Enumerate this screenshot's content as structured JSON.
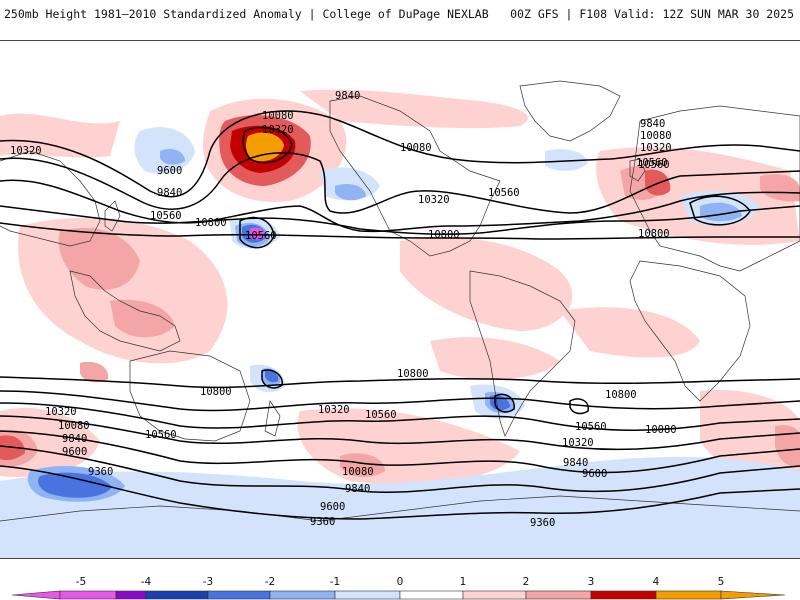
{
  "header": {
    "title": "250mb Height 1981–2010 Standardized Anomaly | College of DuPage NEXLAB",
    "run_info": "00Z GFS | F108 Valid: 12Z SUN MAR 30 2025"
  },
  "contour_labels": {
    "c1": "9840",
    "c2": "10080",
    "c3": "10320",
    "c4": "10560",
    "c5": "9600",
    "c6": "9840",
    "c7": "10560",
    "c8": "10800",
    "c9": "10320",
    "c10": "10560",
    "c11": "10080",
    "c12": "10320",
    "c13": "10560",
    "c14": "9840",
    "c15": "10080",
    "c16": "10320",
    "c17": "10560",
    "c18": "10800",
    "c19": "10800",
    "c20": "10800",
    "c21": "10320",
    "c22": "10560",
    "c23": "10320",
    "c24": "10080",
    "c25": "9840",
    "c26": "9600",
    "c27": "9360",
    "c28": "10560",
    "c29": "10080",
    "c30": "9840",
    "c31": "9600",
    "c32": "9360",
    "c33": "10800",
    "c34": "10800",
    "c35": "10560",
    "c36": "10080",
    "c37": "10320",
    "c38": "9840",
    "c39": "9600",
    "c40": "9360"
  },
  "colorbar": {
    "ticks": [
      "-5",
      "-4",
      "-3",
      "-2",
      "-1",
      "0",
      "1",
      "2",
      "3",
      "4",
      "5"
    ],
    "colors": [
      "#e957e6",
      "#8a0bc7",
      "#1a3fb0",
      "#4873e0",
      "#8fb3f3",
      "#d2e3fb",
      "#ffffff",
      "#ffd2d2",
      "#f4a5a5",
      "#e35a5a",
      "#c20000",
      "#f39d00"
    ]
  },
  "colors": {
    "positive_light": "#ffd2d2",
    "positive_mid": "#f4a5a5",
    "positive_strong": "#e35a5a",
    "positive_dark": "#c20000",
    "positive_max": "#f39d00",
    "negative_light": "#d2e3fb",
    "negative_mid": "#8fb3f3",
    "negative_strong": "#4873e0",
    "negative_max": "#e957e6"
  }
}
